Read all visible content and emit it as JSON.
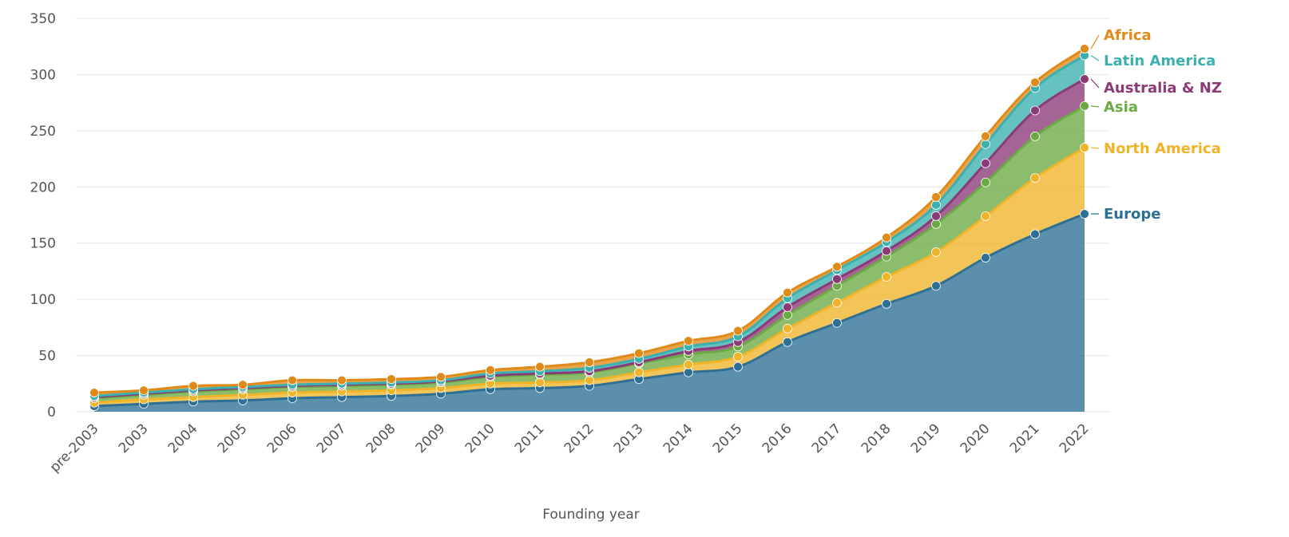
{
  "chart_data": {
    "type": "area",
    "stacked": true,
    "title": "",
    "xlabel": "Founding year",
    "ylabel": "",
    "ylim": [
      0,
      350
    ],
    "yticks": [
      0,
      50,
      100,
      150,
      200,
      250,
      300,
      350
    ],
    "grid": true,
    "legend": "direct labels at right end of series",
    "categories": [
      "pre-2003",
      "2003",
      "2004",
      "2005",
      "2006",
      "2007",
      "2008",
      "2009",
      "2010",
      "2011",
      "2012",
      "2013",
      "2014",
      "2015",
      "2016",
      "2017",
      "2018",
      "2019",
      "2020",
      "2021",
      "2022"
    ],
    "series": [
      {
        "name": "Europe",
        "color": "#2e6f95",
        "values": [
          5,
          7,
          9,
          10,
          12,
          13,
          14,
          16,
          20,
          21,
          23,
          29,
          35,
          40,
          62,
          79,
          96,
          112,
          137,
          158,
          176
        ]
      },
      {
        "name": "North America",
        "color": "#f0b429",
        "values": [
          3,
          4,
          4,
          5,
          5,
          5,
          5,
          5,
          5,
          5,
          5,
          6,
          7,
          9,
          12,
          18,
          24,
          30,
          37,
          50,
          59
        ]
      },
      {
        "name": "Asia",
        "color": "#6aab44",
        "values": [
          4,
          4,
          5,
          5,
          5,
          5,
          5,
          5,
          6,
          7,
          7,
          8,
          9,
          9,
          12,
          15,
          18,
          25,
          30,
          37,
          37
        ]
      },
      {
        "name": "Australia & NZ",
        "color": "#8b3a77",
        "values": [
          1,
          1,
          1,
          1,
          1,
          1,
          1,
          1,
          1,
          1,
          1,
          1,
          3,
          4,
          7,
          6,
          5,
          7,
          17,
          23,
          24
        ]
      },
      {
        "name": "Latin America",
        "color": "#3bb0b0",
        "values": [
          1,
          1,
          1,
          1,
          1,
          1,
          1,
          1,
          2,
          2,
          3,
          3,
          4,
          5,
          8,
          8,
          8,
          10,
          17,
          20,
          21
        ]
      },
      {
        "name": "Africa",
        "color": "#e08a1a",
        "values": [
          3,
          2,
          3,
          2,
          4,
          3,
          3,
          3,
          3,
          4,
          5,
          5,
          5,
          5,
          5,
          3,
          4,
          7,
          7,
          5,
          6
        ]
      }
    ]
  }
}
